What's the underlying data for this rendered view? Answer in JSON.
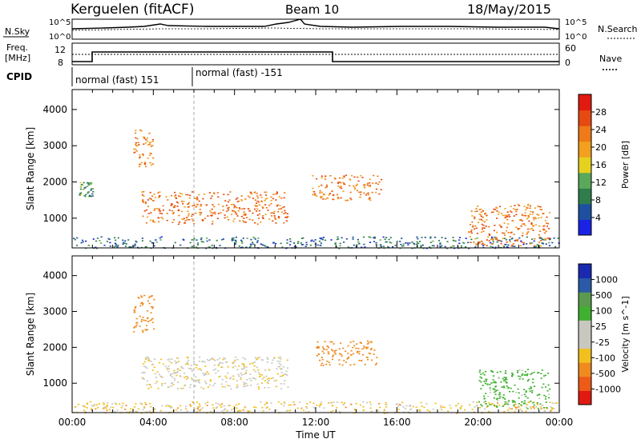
{
  "header": {
    "station": "Kerguelen (fitACF)",
    "beam": "Beam 10",
    "date": "18/May/2015"
  },
  "summary": {
    "nsky_label": "N.Sky",
    "nsky_ticks": [
      "10^5",
      "10^0"
    ],
    "nsearch_label": "N.Search",
    "freq_label": [
      "Freq.",
      "[MHz]"
    ],
    "freq_ticks": [
      "12",
      "8"
    ],
    "nave_label": "Nave",
    "nave_ticks": [
      "60",
      "0"
    ],
    "cpid_label": "CPID",
    "cpid_segments": [
      "normal (fast) 151",
      "normal (fast) -151"
    ]
  },
  "colors": {
    "power": [
      "#1a22e6",
      "#1e4fa0",
      "#2f7d4c",
      "#5aa85a",
      "#e6d21e",
      "#f2a01e",
      "#ee7a18",
      "#e64a12",
      "#e01a10"
    ],
    "velocity": [
      "#e01a10",
      "#ee5a18",
      "#f08a1e",
      "#f2c01e",
      "#c8c8c0",
      "#c8c8c0",
      "#40b030",
      "#5a9a50",
      "#2a5aa8",
      "#1a2ab0"
    ]
  },
  "chart_data": [
    {
      "type": "heatmap",
      "panel": "power",
      "xlabel": "",
      "ylabel": "Slant Range [km]",
      "xlim": [
        "00:00",
        "24:00"
      ],
      "ylim": [
        180,
        4550
      ],
      "yticks": [
        1000,
        2000,
        3000,
        4000
      ],
      "colorbar": {
        "label": "Power [dB]",
        "ticks": [
          4,
          8,
          12,
          16,
          20,
          24,
          28
        ]
      },
      "regions": [
        {
          "t0": 3.4,
          "t1": 10.6,
          "r0": 850,
          "r1": 1750,
          "value_db": 27
        },
        {
          "t0": 3.0,
          "t1": 4.0,
          "r0": 2400,
          "r1": 3500,
          "value_db": 25
        },
        {
          "t0": 11.8,
          "t1": 15.2,
          "r0": 1500,
          "r1": 2200,
          "value_db": 26
        },
        {
          "t0": 0.3,
          "t1": 1.0,
          "r0": 1600,
          "r1": 2000,
          "value_db": 12
        },
        {
          "t0": 0.0,
          "t1": 24.0,
          "r0": 180,
          "r1": 500,
          "value_db": 8
        },
        {
          "t0": 19.5,
          "t1": 23.5,
          "r0": 250,
          "r1": 1400,
          "value_db": 26
        }
      ]
    },
    {
      "type": "heatmap",
      "panel": "velocity",
      "xlabel": "Time UT",
      "ylabel": "Slant Range [km]",
      "xlim": [
        "00:00",
        "24:00"
      ],
      "xticks": [
        "00:00",
        "04:00",
        "08:00",
        "12:00",
        "16:00",
        "20:00",
        "00:00"
      ],
      "ylim": [
        180,
        4550
      ],
      "yticks": [
        1000,
        2000,
        3000,
        4000
      ],
      "colorbar": {
        "label": "Velocity [m s^-1]",
        "ticks": [
          1000,
          500,
          100,
          25,
          -25,
          -100,
          -500,
          -1000
        ]
      },
      "regions": [
        {
          "t0": 3.4,
          "t1": 10.6,
          "r0": 850,
          "r1": 1750,
          "value_ms": 0
        },
        {
          "t0": 3.0,
          "t1": 4.0,
          "r0": 2400,
          "r1": 3500,
          "value_ms": -300
        },
        {
          "t0": 12.0,
          "t1": 15.0,
          "r0": 1500,
          "r1": 2200,
          "value_ms": -300
        },
        {
          "t0": 0.0,
          "t1": 24.0,
          "r0": 180,
          "r1": 500,
          "value_ms": -50
        },
        {
          "t0": 20.0,
          "t1": 23.5,
          "r0": 300,
          "r1": 1400,
          "value_ms": 150
        }
      ]
    }
  ]
}
